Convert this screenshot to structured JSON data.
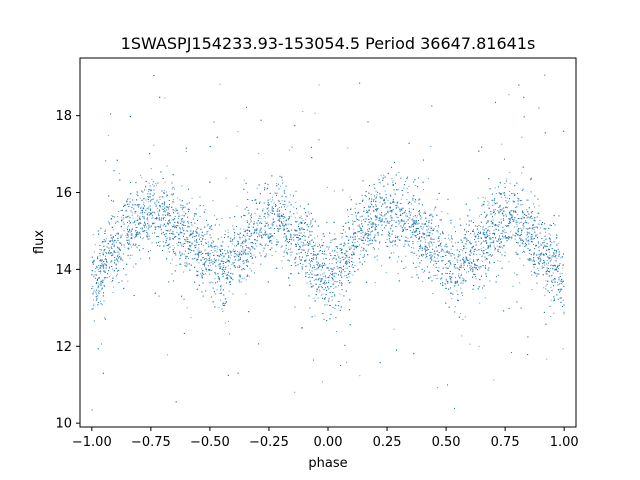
{
  "chart_data": {
    "type": "scatter",
    "title": "1SWASPJ154233.93-153054.5 Period 36647.81641s",
    "xlabel": "phase",
    "ylabel": "flux",
    "xlim": [
      -1.05,
      1.05
    ],
    "ylim": [
      9.9,
      19.5
    ],
    "x_ticks": [
      -1.0,
      -0.75,
      -0.5,
      -0.25,
      0.0,
      0.25,
      0.5,
      0.75,
      1.0
    ],
    "x_tick_labels": [
      "−1.00",
      "−0.75",
      "−0.50",
      "−0.25",
      "0.00",
      "0.25",
      "0.50",
      "0.75",
      "1.00"
    ],
    "y_ticks": [
      10,
      12,
      14,
      16,
      18
    ],
    "y_tick_labels": [
      "10",
      "12",
      "14",
      "16",
      "18"
    ],
    "grid": false,
    "legend": "none",
    "marker_color": "#1f77b4",
    "series": [
      {
        "points_per_phase_cycle": "dense",
        "trend_x": [
          -1.0,
          -0.9,
          -0.8,
          -0.75,
          -0.7,
          -0.6,
          -0.5,
          -0.45,
          -0.4,
          -0.3,
          -0.25,
          -0.2,
          -0.1,
          0.0,
          0.1,
          0.2,
          0.25,
          0.3,
          0.4,
          0.5,
          0.55,
          0.6,
          0.7,
          0.75,
          0.8,
          0.9,
          1.0
        ],
        "trend_y": [
          13.7,
          14.6,
          15.3,
          15.5,
          15.4,
          14.9,
          14.2,
          14.0,
          14.3,
          15.0,
          15.3,
          15.3,
          14.6,
          13.7,
          14.6,
          15.3,
          15.5,
          15.4,
          14.9,
          14.2,
          14.0,
          14.3,
          15.0,
          15.3,
          15.3,
          14.6,
          13.7
        ]
      }
    ]
  }
}
